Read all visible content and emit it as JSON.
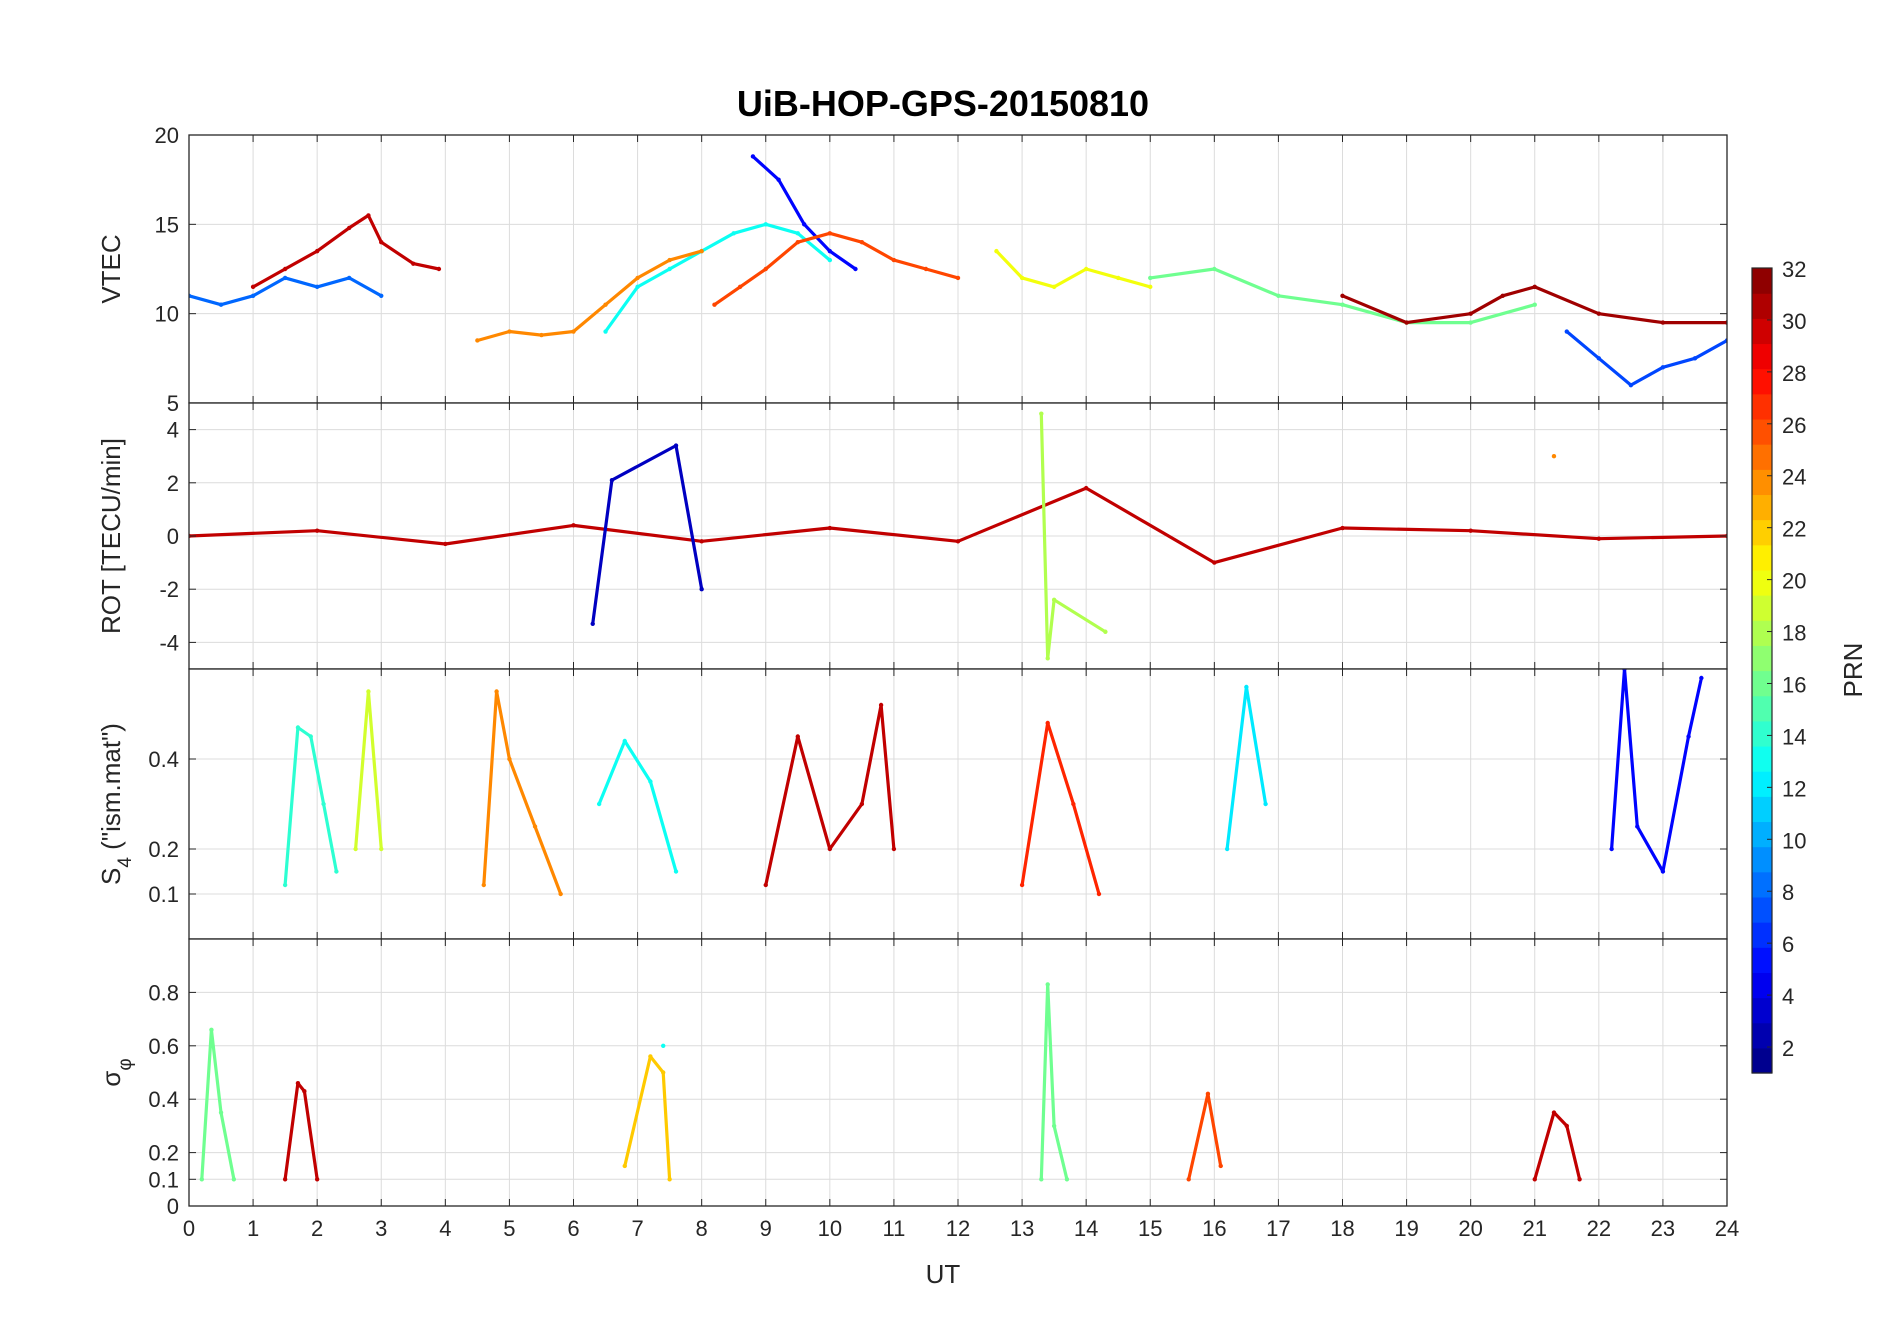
{
  "chart_data": {
    "type": "line",
    "title": "UiB-HOP-GPS-20150810",
    "xlabel": "UT",
    "xlim": [
      0,
      24
    ],
    "x_ticks": [
      0,
      1,
      2,
      3,
      4,
      5,
      6,
      7,
      8,
      9,
      10,
      11,
      12,
      13,
      14,
      15,
      16,
      17,
      18,
      19,
      20,
      21,
      22,
      23,
      24
    ],
    "x_tick_labels": [
      "0",
      "1",
      "2",
      "3",
      "4",
      "5",
      "6",
      "7",
      "8",
      "9",
      "10",
      "11",
      "12",
      "13",
      "14",
      "15",
      "16",
      "17",
      "18",
      "19",
      "20",
      "21",
      "22",
      "23",
      "24"
    ],
    "grid": true,
    "panels": [
      {
        "id": "vtec",
        "ylabel": "VTEC",
        "ylim": [
          5,
          20
        ],
        "y_ticks": [
          5,
          10,
          15,
          20
        ],
        "y_tick_labels": [
          "5",
          "10",
          "15",
          "20"
        ],
        "series": [
          {
            "prn": 30,
            "x": [
              1.0,
              1.5,
              2.0,
              2.5,
              2.8,
              3.0,
              3.5,
              3.9
            ],
            "y": [
              11.5,
              12.5,
              13.5,
              14.8,
              15.5,
              14.0,
              12.8,
              12.5
            ]
          },
          {
            "prn": 5,
            "x": [
              8.8,
              9.2,
              9.6,
              10.0,
              10.4
            ],
            "y": [
              18.8,
              17.5,
              15.0,
              13.5,
              12.5
            ]
          },
          {
            "prn": 13,
            "x": [
              6.5,
              7.0,
              7.5,
              8.0,
              8.5,
              9.0,
              9.5,
              10.0
            ],
            "y": [
              9.0,
              11.5,
              12.5,
              13.5,
              14.5,
              15.0,
              14.5,
              13.0
            ]
          },
          {
            "prn": 24,
            "x": [
              4.5,
              5.0,
              5.5,
              6.0,
              6.5,
              7.0,
              7.5,
              8.0
            ],
            "y": [
              8.5,
              9.0,
              8.8,
              9.0,
              10.5,
              12.0,
              13.0,
              13.5
            ]
          },
          {
            "prn": 26,
            "x": [
              8.2,
              8.6,
              9.0,
              9.5,
              10.0,
              10.5,
              11.0,
              11.5,
              12.0
            ],
            "y": [
              10.5,
              11.5,
              12.5,
              14.0,
              14.5,
              14.0,
              13.0,
              12.5,
              12.0
            ]
          },
          {
            "prn": 20,
            "x": [
              12.6,
              13.0,
              13.5,
              14.0,
              14.5,
              15.0
            ],
            "y": [
              13.5,
              12.0,
              11.5,
              12.5,
              12.0,
              11.5
            ]
          },
          {
            "prn": 8,
            "x": [
              0.0,
              0.5,
              1.0,
              1.5,
              2.0,
              2.5,
              3.0
            ],
            "y": [
              11.0,
              10.5,
              11.0,
              12.0,
              11.5,
              12.0,
              11.0
            ]
          },
          {
            "prn": 16,
            "x": [
              15.0,
              16.0,
              17.0,
              18.0,
              19.0,
              20.0,
              21.0
            ],
            "y": [
              12.0,
              12.5,
              11.0,
              10.5,
              9.5,
              9.5,
              10.5
            ]
          },
          {
            "prn": 31,
            "x": [
              18.0,
              19.0,
              20.0,
              20.5,
              21.0,
              22.0,
              23.0,
              24.0
            ],
            "y": [
              11.0,
              9.5,
              10.0,
              11.0,
              11.5,
              10.0,
              9.5,
              9.5
            ]
          },
          {
            "prn": 7,
            "x": [
              21.5,
              22.0,
              22.5,
              23.0,
              23.5,
              24.0
            ],
            "y": [
              9.0,
              7.5,
              6.0,
              7.0,
              7.5,
              8.5
            ]
          }
        ]
      },
      {
        "id": "rot",
        "ylabel": "ROT [TECU/min]",
        "ylim": [
          -5,
          5
        ],
        "y_ticks": [
          -4,
          -2,
          0,
          2,
          4
        ],
        "y_tick_labels": [
          "-4",
          "-2",
          "0",
          "2",
          "4"
        ],
        "series": [
          {
            "prn": 30,
            "x": [
              0.0,
              2.0,
              4.0,
              6.0,
              8.0,
              10.0,
              12.0,
              14.0,
              16.0,
              18.0,
              20.0,
              22.0,
              24.0
            ],
            "y": [
              0.0,
              0.2,
              -0.3,
              0.4,
              -0.2,
              0.3,
              -0.2,
              1.8,
              -1.0,
              0.3,
              0.2,
              -0.1,
              0.0
            ]
          },
          {
            "prn": 3,
            "x": [
              6.3,
              6.6,
              7.6,
              8.0
            ],
            "y": [
              -3.3,
              2.1,
              3.4,
              -2.0
            ]
          },
          {
            "prn": 18,
            "x": [
              13.3,
              13.4,
              13.5,
              14.3
            ],
            "y": [
              4.6,
              -4.6,
              -2.4,
              -3.6
            ]
          },
          {
            "prn": 24,
            "x": [
              21.3
            ],
            "y": [
              3.0
            ]
          }
        ]
      },
      {
        "id": "s4",
        "ylabel": "S4 (\"ism.mat\")",
        "ylabel_main": "S",
        "ylabel_sub": "4",
        "ylabel_rest": " (\"ism.mat\")",
        "ylim": [
          0,
          0.6
        ],
        "y_ticks": [
          0.1,
          0.2,
          0.4
        ],
        "y_tick_labels": [
          "0.1",
          "0.2",
          "0.4"
        ],
        "series": [
          {
            "prn": 14,
            "x": [
              1.5,
              1.7,
              1.9,
              2.1,
              2.3
            ],
            "y": [
              0.12,
              0.47,
              0.45,
              0.3,
              0.15
            ]
          },
          {
            "prn": 19,
            "x": [
              2.6,
              2.8,
              3.0
            ],
            "y": [
              0.2,
              0.55,
              0.2
            ]
          },
          {
            "prn": 24,
            "x": [
              4.6,
              4.8,
              5.0,
              5.4,
              5.8
            ],
            "y": [
              0.12,
              0.55,
              0.4,
              0.25,
              0.1
            ]
          },
          {
            "prn": 13,
            "x": [
              6.4,
              6.8,
              7.2,
              7.6
            ],
            "y": [
              0.3,
              0.44,
              0.35,
              0.15
            ]
          },
          {
            "prn": 30,
            "x": [
              9.0,
              9.5,
              10.0,
              10.5,
              10.8,
              11.0
            ],
            "y": [
              0.12,
              0.45,
              0.2,
              0.3,
              0.52,
              0.2
            ]
          },
          {
            "prn": 27,
            "x": [
              13.0,
              13.4,
              13.8,
              14.2
            ],
            "y": [
              0.12,
              0.48,
              0.3,
              0.1
            ]
          },
          {
            "prn": 12,
            "x": [
              16.2,
              16.5,
              16.8
            ],
            "y": [
              0.2,
              0.56,
              0.3
            ]
          },
          {
            "prn": 5,
            "x": [
              22.2,
              22.4,
              22.6,
              23.0,
              23.4,
              23.6
            ],
            "y": [
              0.2,
              0.6,
              0.25,
              0.15,
              0.45,
              0.58
            ]
          }
        ]
      },
      {
        "id": "sigma_phi",
        "ylabel": "σφ",
        "ylabel_main": "σ",
        "ylabel_sub": "φ",
        "ylim": [
          0,
          1
        ],
        "y_ticks": [
          0,
          0.1,
          0.2,
          0.4,
          0.6,
          0.8
        ],
        "y_tick_labels": [
          "0",
          "0.1",
          "0.2",
          "0.4",
          "0.6",
          "0.8"
        ],
        "series": [
          {
            "prn": 16,
            "x": [
              0.2,
              0.35,
              0.5,
              0.7
            ],
            "y": [
              0.1,
              0.66,
              0.35,
              0.1
            ]
          },
          {
            "prn": 30,
            "x": [
              1.5,
              1.7,
              1.8,
              2.0
            ],
            "y": [
              0.1,
              0.46,
              0.43,
              0.1
            ]
          },
          {
            "prn": 22,
            "x": [
              6.8,
              7.2,
              7.4,
              7.5
            ],
            "y": [
              0.15,
              0.56,
              0.5,
              0.1
            ]
          },
          {
            "prn": 13,
            "x": [
              7.4
            ],
            "y": [
              0.6
            ]
          },
          {
            "prn": 16,
            "x": [
              13.3,
              13.4,
              13.5,
              13.7
            ],
            "y": [
              0.1,
              0.83,
              0.3,
              0.1
            ]
          },
          {
            "prn": 26,
            "x": [
              15.6,
              15.9,
              16.1
            ],
            "y": [
              0.1,
              0.42,
              0.15
            ]
          },
          {
            "prn": 30,
            "x": [
              21.0,
              21.3,
              21.5,
              21.7
            ],
            "y": [
              0.1,
              0.35,
              0.3,
              0.1
            ]
          }
        ]
      }
    ],
    "colorbar": {
      "label": "PRN",
      "range": [
        1,
        32
      ],
      "ticks": [
        2,
        4,
        6,
        8,
        10,
        12,
        14,
        16,
        18,
        20,
        22,
        24,
        26,
        28,
        30,
        32
      ],
      "tick_labels": [
        "2",
        "4",
        "6",
        "8",
        "10",
        "12",
        "14",
        "16",
        "18",
        "20",
        "22",
        "24",
        "26",
        "28",
        "30",
        "32"
      ],
      "colormap": "jet"
    }
  }
}
